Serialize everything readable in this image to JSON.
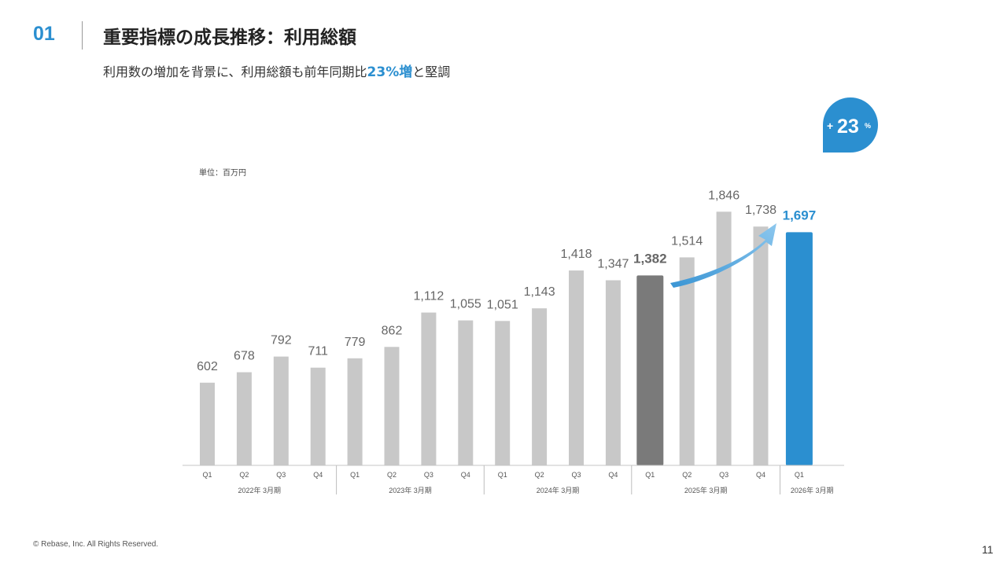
{
  "header": {
    "section_number": "01",
    "title": "重要指標の成長推移：利用総額",
    "subtitle_prefix": "利用数の増加を背景に、利用総額も前年同期比",
    "subtitle_highlight": "23%増",
    "subtitle_suffix": "と堅調"
  },
  "colors": {
    "accent": "#2b8fd0",
    "bar_default": "#c8c8c8",
    "bar_prev_year": "#7a7a7a",
    "bar_current": "#2b8fd0",
    "arrow": "#6cb3e3"
  },
  "chart_data": {
    "type": "bar",
    "unit_label": "単位：百万円",
    "growth_badge": {
      "prefix": "+",
      "value": "23",
      "suffix": "%"
    },
    "categories": [
      "Q1",
      "Q2",
      "Q3",
      "Q4",
      "Q1",
      "Q2",
      "Q3",
      "Q4",
      "Q1",
      "Q2",
      "Q3",
      "Q4",
      "Q1",
      "Q2",
      "Q3",
      "Q4",
      "Q1"
    ],
    "fiscal_years": [
      {
        "label": "2022年 3月期",
        "count": 4
      },
      {
        "label": "2023年 3月期",
        "count": 4
      },
      {
        "label": "2024年 3月期",
        "count": 4
      },
      {
        "label": "2025年 3月期",
        "count": 4
      },
      {
        "label": "2026年 3月期",
        "count": 1
      }
    ],
    "values": [
      602,
      678,
      792,
      711,
      779,
      862,
      1112,
      1055,
      1051,
      1143,
      1418,
      1347,
      1382,
      1514,
      1846,
      1738,
      1697
    ],
    "value_labels": [
      "602",
      "678",
      "792",
      "711",
      "779",
      "862",
      "1,112",
      "1,055",
      "1,051",
      "1,143",
      "1,418",
      "1,347",
      "1,382",
      "1,514",
      "1,846",
      "1,738",
      "1,697"
    ],
    "highlight_prev_index": 12,
    "highlight_current_index": 16,
    "ylim": [
      0,
      2200
    ]
  },
  "footer": {
    "copyright": "© Rebase, Inc. All Rights Reserved.",
    "page_number": "11"
  }
}
